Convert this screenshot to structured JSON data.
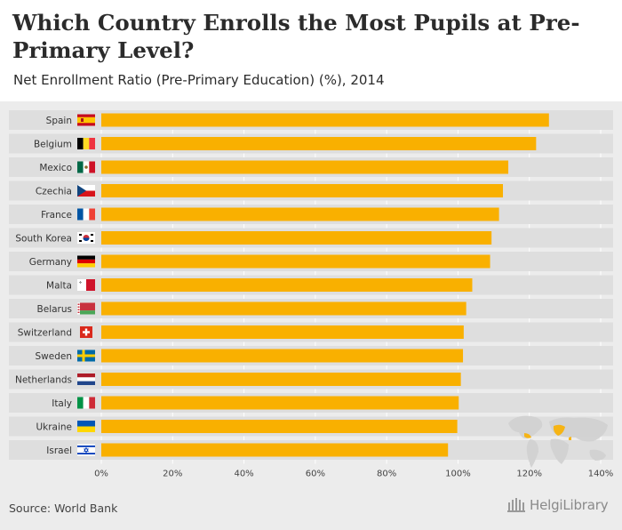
{
  "title": "Which Country Enrolls the Most Pupils at Pre-Primary Level?",
  "subtitle": "Net Enrollment Ratio (Pre-Primary Education) (%), 2014",
  "source": "Source: World Bank",
  "logo_text": "HelgiLibrary",
  "colors": {
    "bar": "#f9b000",
    "row_bg": "#dedede",
    "label": "#333333",
    "map": "#d0d0d0",
    "map_highlight": "#f9b000"
  },
  "chart_data": {
    "type": "bar",
    "orientation": "horizontal",
    "categories": [
      "Spain",
      "Belgium",
      "Mexico",
      "Czechia",
      "France",
      "South Korea",
      "Germany",
      "Malta",
      "Belarus",
      "Switzerland",
      "Sweden",
      "Netherlands",
      "Italy",
      "Ukraine",
      "Israel"
    ],
    "flags": [
      "spain-flag",
      "belgium-flag",
      "mexico-flag",
      "czechia-flag",
      "france-flag",
      "south-korea-flag",
      "germany-flag",
      "malta-flag",
      "belarus-flag",
      "switzerland-flag",
      "sweden-flag",
      "netherlands-flag",
      "italy-flag",
      "ukraine-flag",
      "israel-flag"
    ],
    "values": [
      125.5,
      121.9,
      114.1,
      112.6,
      111.5,
      109.4,
      109.0,
      104.0,
      102.3,
      101.6,
      101.4,
      100.8,
      100.2,
      99.8,
      97.2
    ],
    "xlim": [
      0,
      140
    ],
    "xticks": [
      0,
      20,
      40,
      60,
      80,
      100,
      120,
      140
    ],
    "tick_suffix": "%",
    "grid": true,
    "xlabel": "",
    "ylabel": ""
  }
}
